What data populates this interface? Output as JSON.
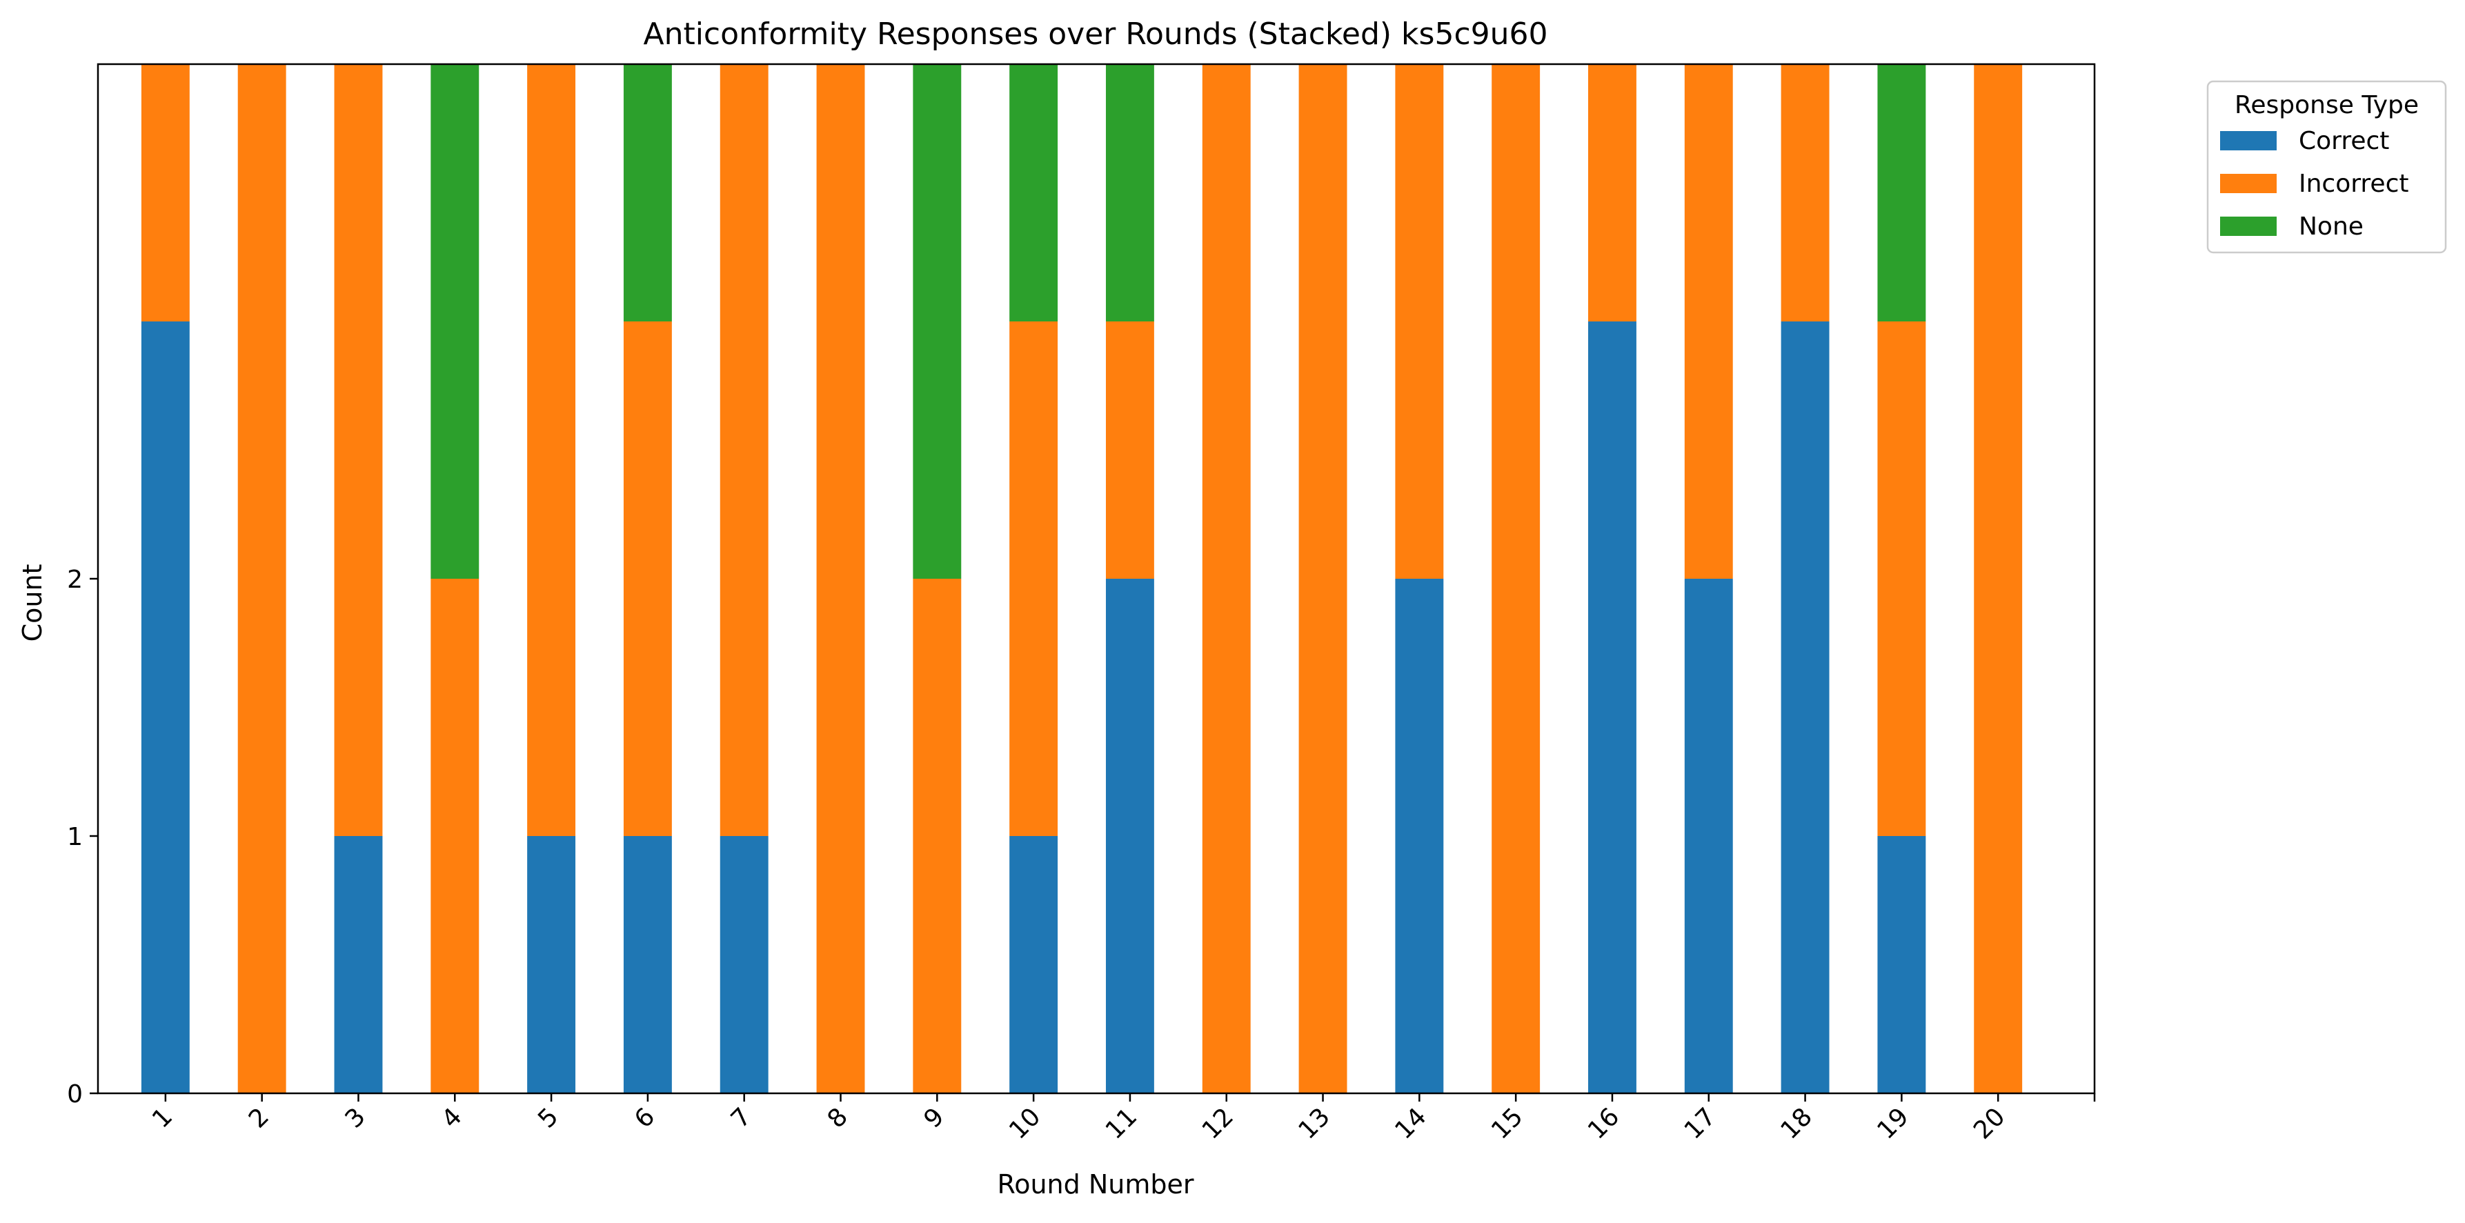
{
  "chart_data": {
    "type": "bar",
    "stacked": true,
    "title": "Anticonformity Responses over Rounds (Stacked) ks5c9u60",
    "xlabel": "Round Number",
    "ylabel": "Count",
    "categories": [
      "1",
      "2",
      "3",
      "4",
      "5",
      "6",
      "7",
      "8",
      "9",
      "10",
      "11",
      "12",
      "13",
      "14",
      "15",
      "16",
      "17",
      "18",
      "19",
      "20"
    ],
    "ylim": [
      0,
      4
    ],
    "yticks": [
      0,
      1,
      2
    ],
    "ytick_labels": [
      "0",
      "1",
      "2"
    ],
    "series": [
      {
        "name": "Correct",
        "color": "#1f77b4",
        "values": [
          3,
          0,
          1,
          0,
          1,
          1,
          1,
          0,
          0,
          1,
          2,
          0,
          0,
          2,
          0,
          3,
          2,
          3,
          1,
          0
        ]
      },
      {
        "name": "Incorrect",
        "color": "#ff7f0e",
        "values": [
          1,
          4,
          3,
          2,
          3,
          2,
          3,
          4,
          2,
          2,
          1,
          4,
          4,
          2,
          4,
          1,
          2,
          1,
          2,
          4
        ]
      },
      {
        "name": "None",
        "color": "#2ca02c",
        "values": [
          0,
          0,
          0,
          2,
          0,
          1,
          0,
          0,
          2,
          1,
          1,
          0,
          0,
          0,
          0,
          0,
          0,
          0,
          1,
          0
        ]
      }
    ],
    "legend": {
      "title": "Response Type",
      "placement": "outside-top-right"
    },
    "grid": false
  }
}
